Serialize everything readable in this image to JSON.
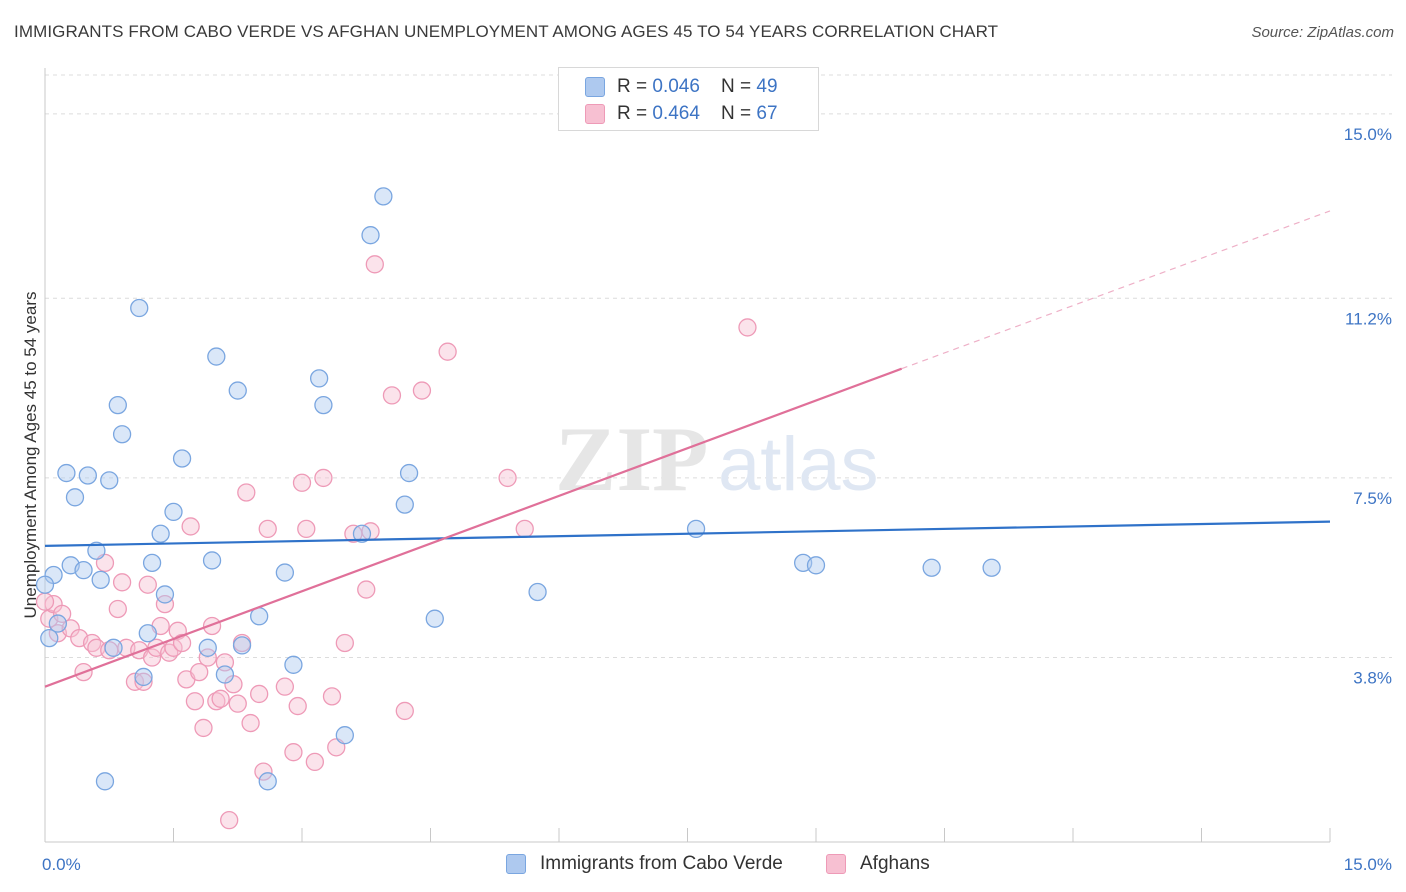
{
  "title": "IMMIGRANTS FROM CABO VERDE VS AFGHAN UNEMPLOYMENT AMONG AGES 45 TO 54 YEARS CORRELATION CHART",
  "source": "Source: ZipAtlas.com",
  "watermark": {
    "zip": "ZIP",
    "atlas": "atlas"
  },
  "legend": {
    "rows": [
      {
        "r_label": "R = ",
        "r_value": "0.046",
        "n_label": "N = ",
        "n_value": "49",
        "color": "#aec9ef",
        "border": "#7aa6e0"
      },
      {
        "r_label": "R = ",
        "r_value": "0.464",
        "n_label": "N = ",
        "n_value": "67",
        "color": "#f7c0d2",
        "border": "#ee9ab7"
      }
    ]
  },
  "chart_data": {
    "type": "scatter",
    "ylabel": "Unemployment Among Ages 45 to 54 years",
    "xlim": [
      0,
      15
    ],
    "ylim": [
      0,
      15.8
    ],
    "x_tick_labels": [
      "0.0%",
      "15.0%"
    ],
    "y_ticks": [
      {
        "value": 3.8,
        "label": "3.8%"
      },
      {
        "value": 7.5,
        "label": "7.5%"
      },
      {
        "value": 11.2,
        "label": "11.2%"
      },
      {
        "value": 15.0,
        "label": "15.0%"
      }
    ],
    "series": [
      {
        "name": "Immigrants from Cabo Verde",
        "color": "#7aa6e0",
        "fill": "#aec9ef",
        "line_color": "#2f72c9",
        "trend": {
          "x0": 0,
          "y0": 6.1,
          "x1": 15,
          "y1": 6.6
        },
        "points": [
          [
            0.05,
            4.2
          ],
          [
            0.1,
            5.5
          ],
          [
            0.15,
            4.5
          ],
          [
            0.25,
            7.6
          ],
          [
            0.3,
            5.7
          ],
          [
            0.35,
            7.1
          ],
          [
            0.45,
            5.6
          ],
          [
            0.5,
            7.55
          ],
          [
            0.6,
            6.0
          ],
          [
            0.65,
            5.4
          ],
          [
            0.75,
            7.45
          ],
          [
            0.8,
            4.0
          ],
          [
            0.85,
            9.0
          ],
          [
            0.9,
            8.4
          ],
          [
            1.1,
            11.0
          ],
          [
            1.15,
            3.4
          ],
          [
            1.2,
            4.3
          ],
          [
            1.25,
            5.75
          ],
          [
            1.35,
            6.35
          ],
          [
            1.4,
            5.1
          ],
          [
            1.5,
            6.8
          ],
          [
            1.6,
            7.9
          ],
          [
            1.9,
            4.0
          ],
          [
            1.95,
            5.8
          ],
          [
            2.0,
            10.0
          ],
          [
            2.1,
            3.45
          ],
          [
            2.25,
            9.3
          ],
          [
            2.3,
            4.05
          ],
          [
            2.5,
            4.65
          ],
          [
            2.6,
            1.25
          ],
          [
            2.8,
            5.55
          ],
          [
            2.9,
            3.65
          ],
          [
            3.2,
            9.55
          ],
          [
            3.25,
            9.0
          ],
          [
            3.5,
            2.2
          ],
          [
            3.7,
            6.35
          ],
          [
            3.8,
            12.5
          ],
          [
            3.95,
            13.3
          ],
          [
            4.2,
            6.95
          ],
          [
            4.25,
            7.6
          ],
          [
            4.55,
            4.6
          ],
          [
            5.75,
            5.15
          ],
          [
            7.6,
            6.45
          ],
          [
            8.85,
            5.75
          ],
          [
            9.0,
            5.7
          ],
          [
            10.35,
            5.65
          ],
          [
            11.05,
            5.65
          ],
          [
            0.7,
            1.25
          ],
          [
            0.0,
            5.3
          ]
        ]
      },
      {
        "name": "Afghans",
        "color": "#ee9ab7",
        "fill": "#f7c0d2",
        "line_color": "#e07099",
        "trend": {
          "x0": 0,
          "y0": 3.2,
          "x1": 10.0,
          "y1": 9.75
        },
        "trend_ext": {
          "x0": 10.0,
          "y0": 9.75,
          "x1": 15,
          "y1": 13.0
        },
        "points": [
          [
            0.05,
            4.6
          ],
          [
            0.1,
            4.9
          ],
          [
            0.15,
            4.3
          ],
          [
            0.2,
            4.7
          ],
          [
            0.3,
            4.4
          ],
          [
            0.4,
            4.2
          ],
          [
            0.45,
            3.5
          ],
          [
            0.55,
            4.1
          ],
          [
            0.6,
            4.0
          ],
          [
            0.7,
            5.75
          ],
          [
            0.75,
            3.95
          ],
          [
            0.85,
            4.8
          ],
          [
            0.9,
            5.35
          ],
          [
            0.95,
            4.0
          ],
          [
            1.05,
            3.3
          ],
          [
            1.1,
            3.95
          ],
          [
            1.15,
            3.3
          ],
          [
            1.2,
            5.3
          ],
          [
            1.25,
            3.8
          ],
          [
            1.3,
            4.0
          ],
          [
            1.35,
            4.45
          ],
          [
            1.4,
            4.9
          ],
          [
            1.45,
            3.9
          ],
          [
            1.5,
            4.0
          ],
          [
            1.55,
            4.35
          ],
          [
            1.6,
            4.1
          ],
          [
            1.65,
            3.35
          ],
          [
            1.7,
            6.5
          ],
          [
            1.75,
            2.9
          ],
          [
            1.8,
            3.5
          ],
          [
            1.85,
            2.35
          ],
          [
            1.9,
            3.8
          ],
          [
            1.95,
            4.45
          ],
          [
            2.0,
            2.9
          ],
          [
            2.1,
            3.7
          ],
          [
            2.15,
            0.45
          ],
          [
            2.2,
            3.25
          ],
          [
            2.25,
            2.85
          ],
          [
            2.3,
            4.1
          ],
          [
            2.35,
            7.2
          ],
          [
            2.4,
            2.45
          ],
          [
            2.5,
            3.05
          ],
          [
            2.55,
            1.45
          ],
          [
            2.6,
            6.45
          ],
          [
            2.8,
            3.2
          ],
          [
            2.9,
            1.85
          ],
          [
            2.95,
            2.8
          ],
          [
            3.0,
            7.4
          ],
          [
            3.05,
            6.45
          ],
          [
            3.15,
            1.65
          ],
          [
            3.25,
            7.5
          ],
          [
            3.35,
            3.0
          ],
          [
            3.4,
            1.95
          ],
          [
            3.5,
            4.1
          ],
          [
            3.6,
            6.35
          ],
          [
            3.75,
            5.2
          ],
          [
            3.8,
            6.4
          ],
          [
            3.85,
            11.9
          ],
          [
            4.05,
            9.2
          ],
          [
            4.2,
            2.7
          ],
          [
            4.4,
            9.3
          ],
          [
            4.7,
            10.1
          ],
          [
            5.4,
            7.5
          ],
          [
            5.6,
            6.45
          ],
          [
            8.2,
            10.6
          ],
          [
            0.0,
            4.95
          ],
          [
            2.05,
            2.95
          ]
        ]
      }
    ]
  }
}
